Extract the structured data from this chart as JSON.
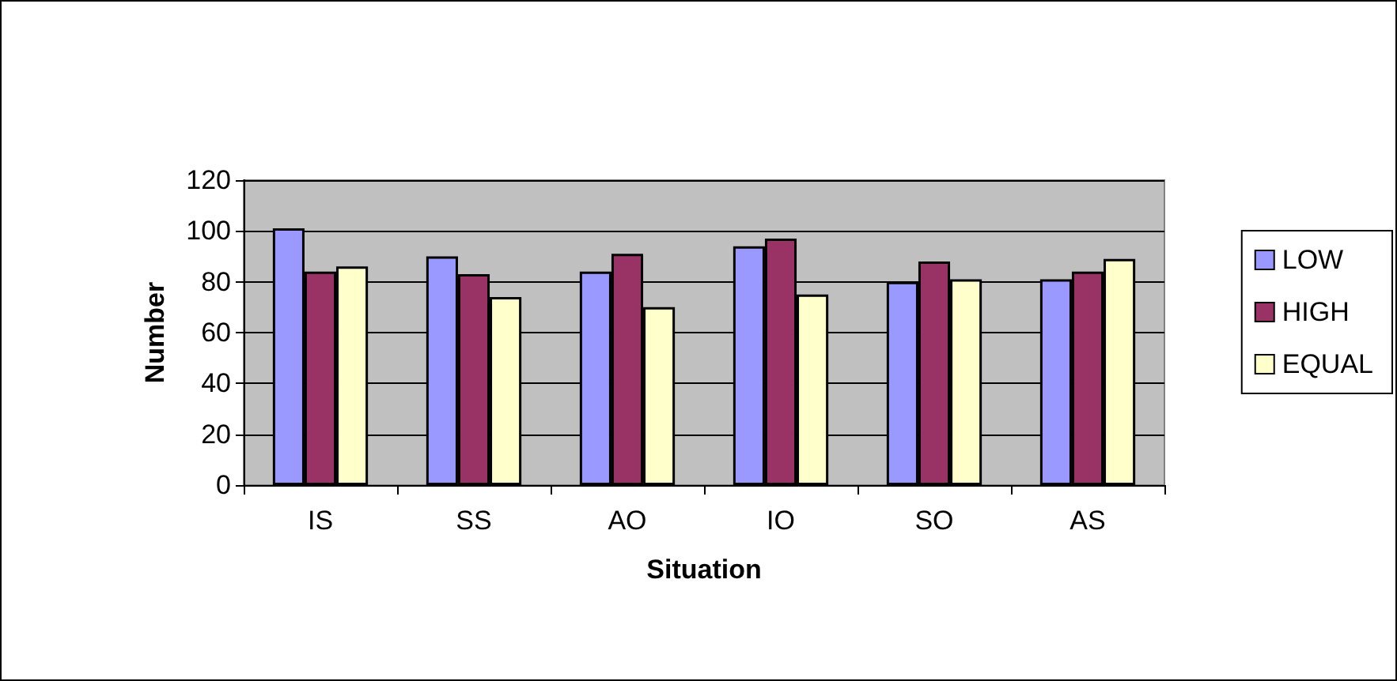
{
  "chart_data": {
    "type": "bar",
    "xlabel": "Situation",
    "ylabel": "Number",
    "categories": [
      "IS",
      "SS",
      "AO",
      "IO",
      "SO",
      "AS"
    ],
    "series": [
      {
        "name": "LOW",
        "color": "#9999ff",
        "values": [
          101,
          90,
          84,
          94,
          80,
          81
        ]
      },
      {
        "name": "HIGH",
        "color": "#993366",
        "values": [
          84,
          83,
          91,
          97,
          88,
          84
        ]
      },
      {
        "name": "EQUAL",
        "color": "#ffffcc",
        "values": [
          86,
          74,
          70,
          75,
          81,
          89
        ]
      }
    ],
    "ylim": [
      0,
      120
    ],
    "yticks": [
      0,
      20,
      40,
      60,
      80,
      100,
      120
    ],
    "grid": "y",
    "legend": "right"
  }
}
